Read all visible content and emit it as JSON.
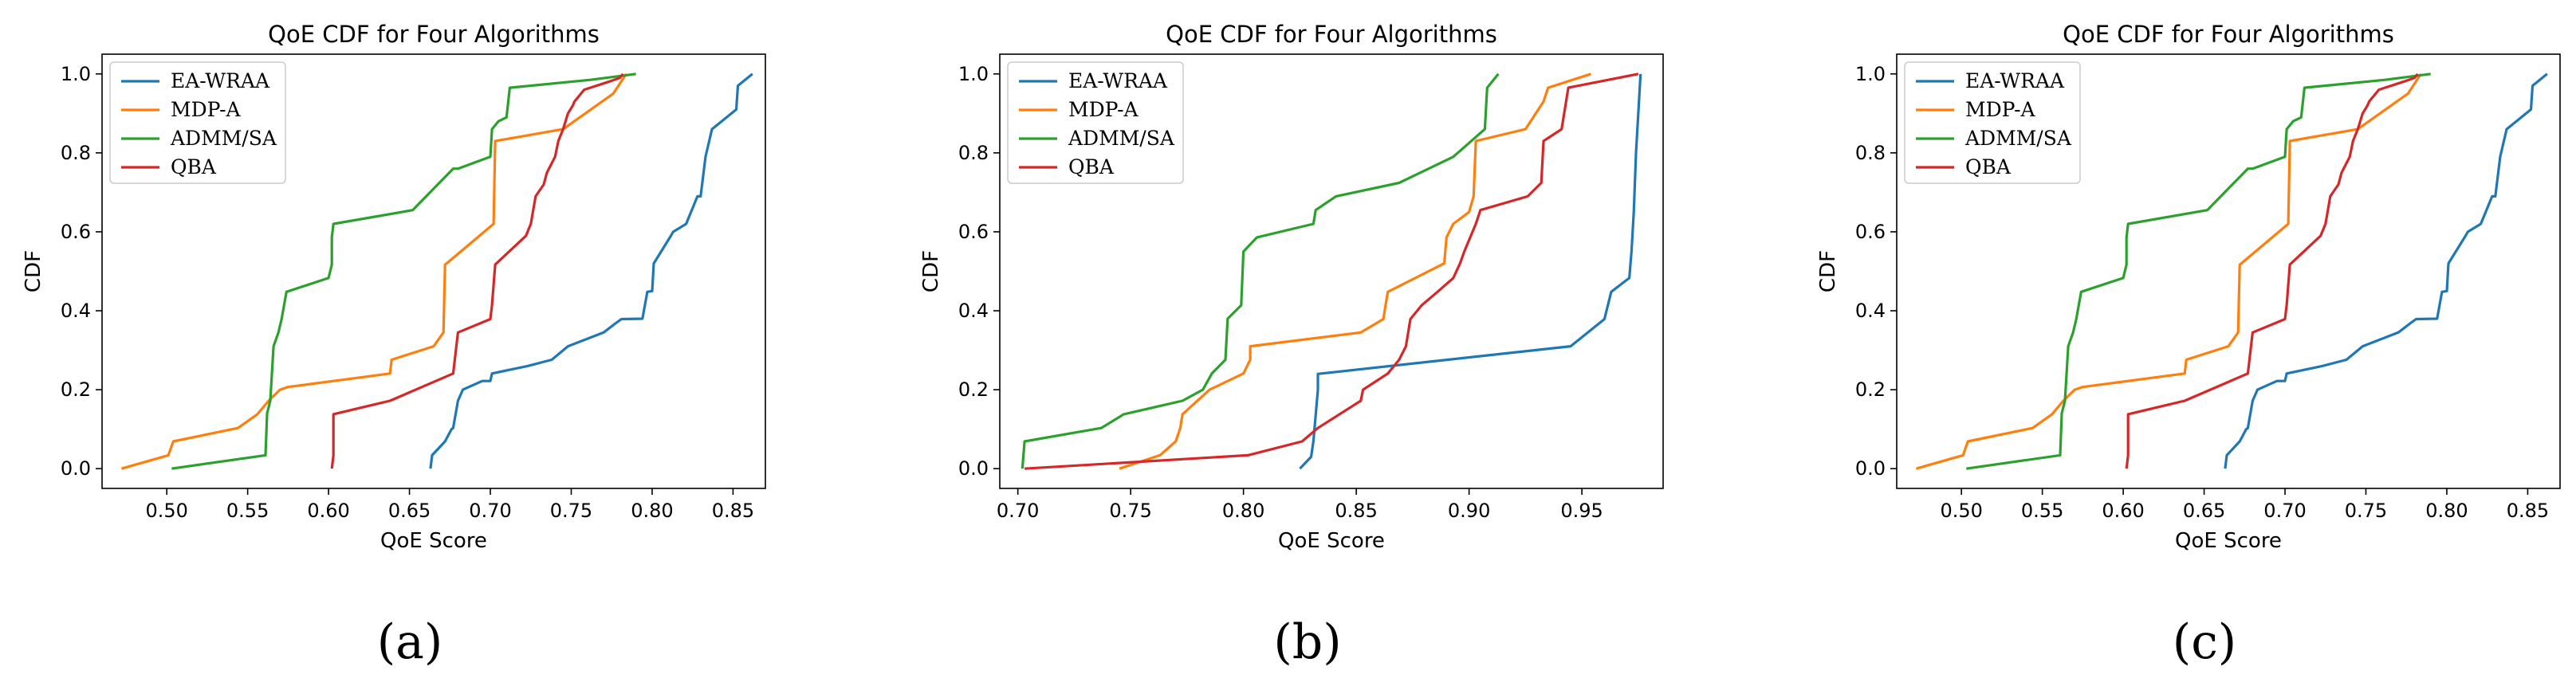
{
  "chart_data": [
    {
      "type": "line",
      "panel_label": "(a)",
      "title": "QoE CDF for Four Algorithms",
      "xlabel": "QoE Score",
      "ylabel": "CDF",
      "xlim": [
        0.46,
        0.87
      ],
      "ylim": [
        -0.05,
        1.05
      ],
      "xticks": [
        "0.50",
        "0.55",
        "0.60",
        "0.65",
        "0.70",
        "0.75",
        "0.80",
        "0.85"
      ],
      "yticks": [
        "0.0",
        "0.2",
        "0.4",
        "0.6",
        "0.8",
        "1.0"
      ],
      "legend": [
        "EA-WRAA",
        "MDP-A",
        "ADMM/SA",
        "QBA"
      ],
      "legend_location": "upper-left",
      "series": [
        {
          "name": "EA-WRAA",
          "color": "#1f77b4",
          "x": [
            0.663,
            0.664,
            0.672,
            0.676,
            0.677,
            0.68,
            0.683,
            0.695,
            0.7,
            0.701,
            0.723,
            0.738,
            0.748,
            0.77,
            0.778,
            0.781,
            0.794,
            0.797,
            0.8,
            0.801,
            0.811,
            0.813,
            0.821,
            0.828,
            0.83,
            0.833,
            0.837,
            0.843,
            0.852,
            0.853,
            0.862
          ],
          "y": [
            0.0,
            0.034,
            0.069,
            0.1,
            0.103,
            0.172,
            0.2,
            0.222,
            0.222,
            0.241,
            0.26,
            0.276,
            0.31,
            0.345,
            0.37,
            0.379,
            0.38,
            0.448,
            0.45,
            0.52,
            0.586,
            0.6,
            0.62,
            0.69,
            0.69,
            0.79,
            0.86,
            0.88,
            0.91,
            0.97,
            1.0
          ]
        },
        {
          "name": "MDP-A",
          "color": "#ff7f0e",
          "x": [
            0.472,
            0.501,
            0.504,
            0.544,
            0.556,
            0.563,
            0.57,
            0.575,
            0.638,
            0.639,
            0.665,
            0.671,
            0.672,
            0.673,
            0.702,
            0.703,
            0.745,
            0.776,
            0.784
          ],
          "y": [
            0.0,
            0.034,
            0.069,
            0.103,
            0.138,
            0.172,
            0.2,
            0.207,
            0.241,
            0.276,
            0.31,
            0.345,
            0.517,
            0.52,
            0.62,
            0.83,
            0.86,
            0.95,
            1.0
          ]
        },
        {
          "name": "ADMM/SA",
          "color": "#2ca02c",
          "x": [
            0.503,
            0.561,
            0.562,
            0.564,
            0.566,
            0.569,
            0.571,
            0.574,
            0.6,
            0.602,
            0.602,
            0.603,
            0.652,
            0.677,
            0.68,
            0.7,
            0.701,
            0.705,
            0.71,
            0.712,
            0.762,
            0.79
          ],
          "y": [
            0.0,
            0.034,
            0.14,
            0.172,
            0.31,
            0.345,
            0.379,
            0.448,
            0.483,
            0.517,
            0.586,
            0.62,
            0.655,
            0.76,
            0.76,
            0.79,
            0.86,
            0.88,
            0.89,
            0.965,
            0.985,
            1.0
          ]
        },
        {
          "name": "QBA",
          "color": "#d62728",
          "x": [
            0.602,
            0.603,
            0.603,
            0.638,
            0.677,
            0.68,
            0.7,
            0.701,
            0.703,
            0.722,
            0.725,
            0.728,
            0.733,
            0.735,
            0.74,
            0.742,
            0.745,
            0.748,
            0.751,
            0.752,
            0.758,
            0.773,
            0.78,
            0.782
          ],
          "y": [
            0.0,
            0.034,
            0.138,
            0.172,
            0.241,
            0.345,
            0.379,
            0.414,
            0.517,
            0.59,
            0.62,
            0.69,
            0.72,
            0.75,
            0.79,
            0.83,
            0.86,
            0.9,
            0.92,
            0.93,
            0.96,
            0.98,
            0.99,
            1.0
          ]
        }
      ]
    },
    {
      "type": "line",
      "panel_label": "(b)",
      "title": "QoE CDF for Four Algorithms",
      "xlabel": "QoE Score",
      "ylabel": "CDF",
      "xlim": [
        0.692,
        0.986
      ],
      "ylim": [
        -0.05,
        1.05
      ],
      "xticks": [
        "0.70",
        "0.75",
        "0.80",
        "0.85",
        "0.90",
        "0.95"
      ],
      "yticks": [
        "0.0",
        "0.2",
        "0.4",
        "0.6",
        "0.8",
        "1.0"
      ],
      "legend": [
        "EA-WRAA",
        "MDP-A",
        "ADMM/SA",
        "QBA"
      ],
      "legend_location": "upper-left",
      "series": [
        {
          "name": "EA-WRAA",
          "color": "#1f77b4",
          "x": [
            0.825,
            0.83,
            0.831,
            0.833,
            0.833,
            0.945,
            0.96,
            0.963,
            0.971,
            0.972,
            0.973,
            0.974,
            0.976
          ],
          "y": [
            0.0,
            0.03,
            0.07,
            0.2,
            0.24,
            0.31,
            0.379,
            0.448,
            0.483,
            0.552,
            0.65,
            0.8,
            1.0
          ]
        },
        {
          "name": "MDP-A",
          "color": "#ff7f0e",
          "x": [
            0.745,
            0.763,
            0.77,
            0.772,
            0.773,
            0.785,
            0.8,
            0.803,
            0.803,
            0.852,
            0.862,
            0.863,
            0.864,
            0.889,
            0.89,
            0.893,
            0.9,
            0.902,
            0.903,
            0.925,
            0.929,
            0.933,
            0.935,
            0.954
          ],
          "y": [
            0.0,
            0.034,
            0.069,
            0.103,
            0.138,
            0.2,
            0.241,
            0.276,
            0.31,
            0.345,
            0.379,
            0.414,
            0.448,
            0.52,
            0.586,
            0.62,
            0.65,
            0.69,
            0.83,
            0.86,
            0.895,
            0.93,
            0.965,
            1.0
          ]
        },
        {
          "name": "ADMM/SA",
          "color": "#2ca02c",
          "x": [
            0.702,
            0.703,
            0.737,
            0.747,
            0.773,
            0.782,
            0.786,
            0.792,
            0.793,
            0.799,
            0.8,
            0.806,
            0.831,
            0.832,
            0.841,
            0.869,
            0.893,
            0.907,
            0.908,
            0.913
          ],
          "y": [
            0.0,
            0.069,
            0.103,
            0.138,
            0.172,
            0.2,
            0.241,
            0.276,
            0.38,
            0.414,
            0.55,
            0.586,
            0.62,
            0.655,
            0.69,
            0.724,
            0.79,
            0.86,
            0.965,
            1.0
          ]
        },
        {
          "name": "QBA",
          "color": "#d62728",
          "x": [
            0.703,
            0.802,
            0.826,
            0.833,
            0.852,
            0.853,
            0.864,
            0.869,
            0.872,
            0.874,
            0.879,
            0.886,
            0.893,
            0.896,
            0.898,
            0.903,
            0.905,
            0.926,
            0.932,
            0.933,
            0.941,
            0.944,
            0.975
          ],
          "y": [
            0.0,
            0.034,
            0.069,
            0.103,
            0.172,
            0.2,
            0.241,
            0.276,
            0.31,
            0.379,
            0.414,
            0.448,
            0.483,
            0.52,
            0.552,
            0.62,
            0.655,
            0.69,
            0.724,
            0.83,
            0.86,
            0.965,
            1.0
          ]
        }
      ]
    },
    {
      "type": "line",
      "panel_label": "(c)",
      "title": "QoE CDF for Four Algorithms",
      "xlabel": "QoE Score",
      "ylabel": "CDF",
      "xlim": [
        0.46,
        0.87
      ],
      "ylim": [
        -0.05,
        1.05
      ],
      "xticks": [
        "0.50",
        "0.55",
        "0.60",
        "0.65",
        "0.70",
        "0.75",
        "0.80",
        "0.85"
      ],
      "yticks": [
        "0.0",
        "0.2",
        "0.4",
        "0.6",
        "0.8",
        "1.0"
      ],
      "legend": [
        "EA-WRAA",
        "MDP-A",
        "ADMM/SA",
        "QBA"
      ],
      "legend_location": "upper-left",
      "series": [
        {
          "name": "EA-WRAA",
          "color": "#1f77b4",
          "x": [
            0.663,
            0.664,
            0.672,
            0.676,
            0.677,
            0.68,
            0.683,
            0.695,
            0.7,
            0.701,
            0.723,
            0.738,
            0.748,
            0.77,
            0.778,
            0.781,
            0.794,
            0.797,
            0.8,
            0.801,
            0.811,
            0.813,
            0.821,
            0.828,
            0.83,
            0.833,
            0.837,
            0.843,
            0.852,
            0.853,
            0.862
          ],
          "y": [
            0.0,
            0.034,
            0.069,
            0.1,
            0.103,
            0.172,
            0.2,
            0.222,
            0.222,
            0.241,
            0.26,
            0.276,
            0.31,
            0.345,
            0.37,
            0.379,
            0.38,
            0.448,
            0.45,
            0.52,
            0.586,
            0.6,
            0.62,
            0.69,
            0.69,
            0.79,
            0.86,
            0.88,
            0.91,
            0.97,
            1.0
          ]
        },
        {
          "name": "MDP-A",
          "color": "#ff7f0e",
          "x": [
            0.472,
            0.501,
            0.504,
            0.544,
            0.556,
            0.563,
            0.57,
            0.575,
            0.638,
            0.639,
            0.665,
            0.671,
            0.672,
            0.673,
            0.702,
            0.703,
            0.745,
            0.776,
            0.784
          ],
          "y": [
            0.0,
            0.034,
            0.069,
            0.103,
            0.138,
            0.172,
            0.2,
            0.207,
            0.241,
            0.276,
            0.31,
            0.345,
            0.517,
            0.52,
            0.62,
            0.83,
            0.86,
            0.95,
            1.0
          ]
        },
        {
          "name": "ADMM/SA",
          "color": "#2ca02c",
          "x": [
            0.503,
            0.561,
            0.562,
            0.564,
            0.566,
            0.569,
            0.571,
            0.574,
            0.6,
            0.602,
            0.602,
            0.603,
            0.652,
            0.677,
            0.68,
            0.7,
            0.701,
            0.705,
            0.71,
            0.712,
            0.762,
            0.79
          ],
          "y": [
            0.0,
            0.034,
            0.14,
            0.172,
            0.31,
            0.345,
            0.379,
            0.448,
            0.483,
            0.517,
            0.586,
            0.62,
            0.655,
            0.76,
            0.76,
            0.79,
            0.86,
            0.88,
            0.89,
            0.965,
            0.985,
            1.0
          ]
        },
        {
          "name": "QBA",
          "color": "#d62728",
          "x": [
            0.602,
            0.603,
            0.603,
            0.638,
            0.677,
            0.68,
            0.7,
            0.701,
            0.703,
            0.722,
            0.725,
            0.728,
            0.733,
            0.735,
            0.74,
            0.742,
            0.745,
            0.748,
            0.751,
            0.752,
            0.758,
            0.773,
            0.78,
            0.782
          ],
          "y": [
            0.0,
            0.034,
            0.138,
            0.172,
            0.241,
            0.345,
            0.379,
            0.414,
            0.517,
            0.59,
            0.62,
            0.69,
            0.72,
            0.75,
            0.79,
            0.83,
            0.86,
            0.9,
            0.92,
            0.93,
            0.96,
            0.98,
            0.99,
            1.0
          ]
        }
      ]
    }
  ]
}
